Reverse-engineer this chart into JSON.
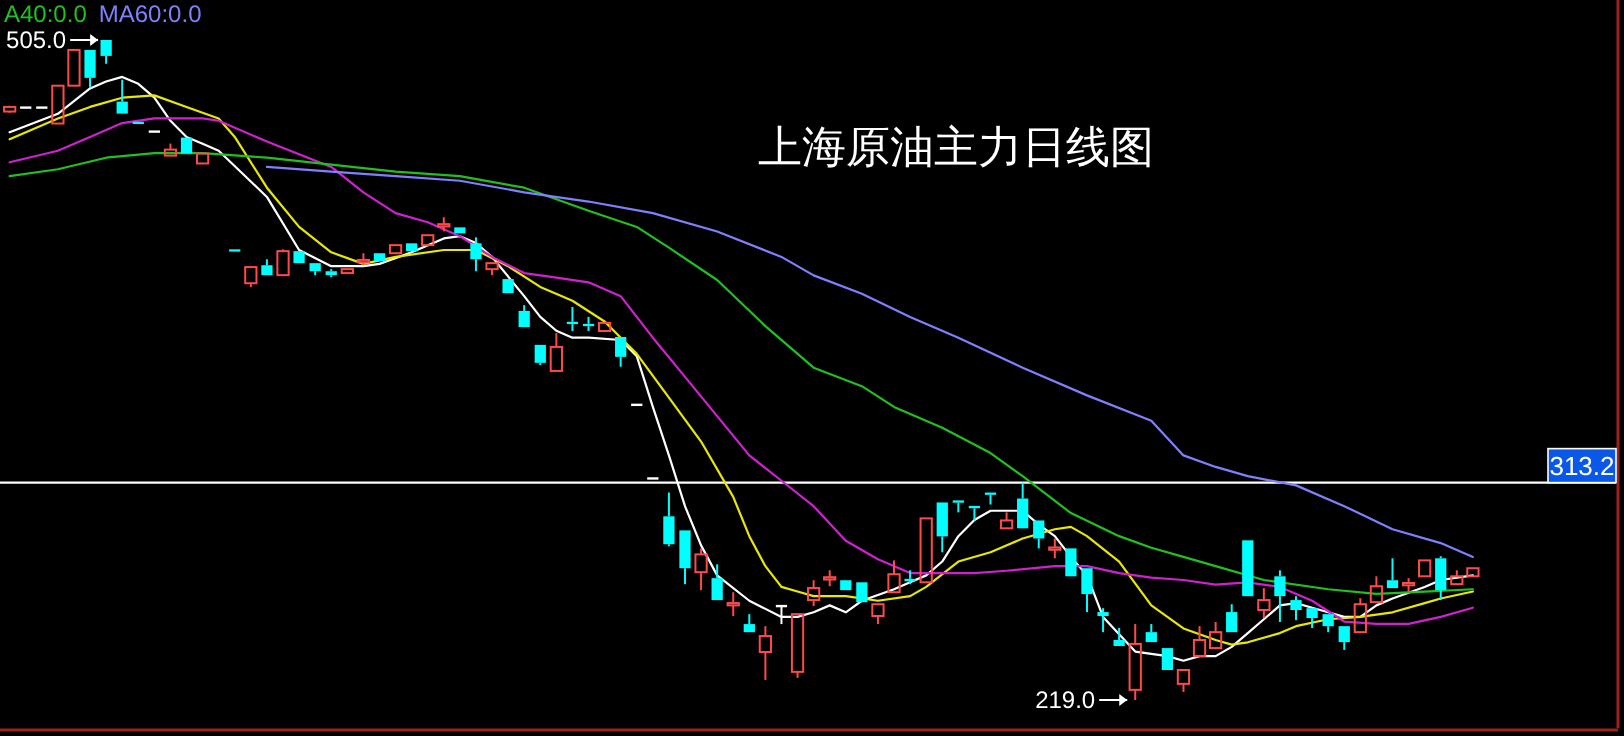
{
  "chart_data": {
    "type": "candlestick",
    "title": "上海原油主力日线图",
    "categories": [
      null,
      null,
      null,
      null,
      null,
      null,
      null,
      null,
      null,
      null,
      null,
      null,
      null,
      null,
      null,
      null,
      null,
      null,
      null,
      null,
      null,
      null,
      null,
      null,
      null,
      null,
      null,
      null,
      null,
      null,
      null,
      null,
      null,
      null,
      null,
      null,
      null,
      null,
      null,
      null,
      null,
      null,
      null,
      null,
      null,
      null,
      null,
      null,
      null,
      null,
      null,
      null,
      null,
      null,
      null,
      null,
      null,
      null,
      null,
      null,
      null,
      null,
      null,
      null,
      null,
      null,
      null,
      null,
      null,
      null,
      null,
      null,
      null,
      null,
      null,
      null,
      null,
      null,
      null,
      null,
      null,
      null,
      null,
      null,
      null,
      null,
      null,
      null,
      null,
      null,
      null,
      null
    ],
    "ohlc": [
      [
        474.0,
        476.5,
        473.5,
        476.0
      ],
      [
        475.7,
        475.7,
        475.7,
        475.7
      ],
      [
        475.7,
        475.7,
        475.7,
        475.7
      ],
      [
        468.8,
        485.2,
        468.8,
        485.2
      ],
      [
        485.2,
        500.7,
        485.2,
        500.7
      ],
      [
        500.7,
        500.7,
        484.3,
        488.6
      ],
      [
        505.0,
        505.0,
        494.7,
        498.1
      ],
      [
        478.3,
        487.8,
        473.1,
        473.1
      ],
      [
        469.6,
        469.6,
        468.6,
        468.6
      ],
      [
        465.3,
        465.3,
        465.3,
        465.3
      ],
      [
        454.9,
        460.1,
        454.9,
        457.5
      ],
      [
        462.7,
        462.7,
        455.8,
        455.8
      ],
      [
        451.5,
        455.8,
        451.5,
        455.8
      ],
      null,
      [
        414.3,
        414.3,
        413.3,
        413.3
      ],
      [
        399.6,
        406.6,
        397.9,
        406.6
      ],
      [
        407.4,
        410.0,
        403.1,
        403.1
      ],
      [
        403.1,
        414.3,
        403.1,
        413.5
      ],
      [
        413.5,
        413.5,
        408.3,
        408.3
      ],
      [
        408.3,
        408.3,
        403.1,
        404.8
      ],
      [
        404.8,
        405.7,
        402.2,
        403.1
      ],
      [
        404.0,
        405.7,
        404.0,
        405.7
      ],
      [
        408.7,
        412.6,
        407.4,
        409.7
      ],
      [
        412.6,
        412.6,
        409.2,
        409.2
      ],
      [
        412.6,
        416.1,
        412.6,
        416.1
      ],
      [
        416.9,
        416.9,
        413.5,
        413.5
      ],
      [
        416.1,
        420.4,
        416.1,
        420.4
      ],
      [
        424.2,
        428.2,
        422.1,
        425.2
      ],
      [
        423.8,
        423.8,
        421.2,
        421.2
      ],
      [
        416.9,
        419.5,
        404.8,
        410.0
      ],
      [
        405.7,
        408.3,
        403.1,
        408.3
      ],
      [
        401.4,
        401.4,
        395.3,
        395.3
      ],
      [
        387.6,
        390.1,
        380.6,
        380.6
      ],
      [
        372.9,
        372.9,
        364.2,
        365.1
      ],
      [
        361.6,
        378.0,
        361.6,
        372.0
      ],
      [
        382.9,
        389.3,
        378.9,
        381.9
      ],
      [
        382.0,
        385.0,
        378.9,
        381.0
      ],
      [
        378.9,
        382.4,
        378.9,
        382.4
      ],
      [
        376.3,
        376.3,
        363.4,
        367.7
      ],
      [
        346.9,
        346.9,
        346.9,
        346.9
      ],
      [
        315.0,
        315.0,
        315.0,
        315.0
      ],
      [
        298.6,
        308.9,
        285.6,
        286.5
      ],
      [
        292.5,
        292.5,
        269.2,
        276.1
      ],
      [
        274.4,
        284.7,
        266.6,
        282.1
      ],
      [
        271.8,
        277.8,
        262.3,
        262.3
      ],
      [
        260.0,
        265.7,
        255.4,
        261.0
      ],
      [
        251.9,
        256.2,
        248.4,
        248.4
      ],
      [
        239.8,
        251.0,
        227.7,
        246.7
      ],
      [
        259.7,
        259.7,
        251.9,
        259.7
      ],
      [
        231.2,
        256.2,
        228.6,
        256.2
      ],
      [
        262.3,
        270.9,
        259.7,
        267.5
      ],
      [
        271.2,
        275.2,
        268.3,
        272.2
      ],
      [
        270.9,
        270.9,
        266.6,
        266.6
      ],
      [
        270.0,
        270.0,
        261.4,
        261.4
      ],
      [
        255.4,
        260.5,
        251.9,
        260.5
      ],
      [
        265.7,
        279.5,
        265.7,
        273.5
      ],
      [
        271.5,
        275.2,
        269.2,
        270.5
      ],
      [
        270.0,
        297.7,
        270.0,
        297.7
      ],
      [
        304.6,
        304.6,
        283.0,
        289.9
      ],
      [
        305.5,
        305.5,
        300.3,
        304.5
      ],
      [
        303.1,
        303.1,
        296.8,
        302.1
      ],
      [
        308.9,
        308.9,
        303.7,
        307.9
      ],
      [
        293.4,
        300.3,
        293.4,
        296.8
      ],
      [
        306.3,
        313.2,
        293.4,
        293.4
      ],
      [
        296.8,
        296.8,
        284.7,
        289.0
      ],
      [
        284.1,
        289.0,
        280.4,
        285.1
      ],
      [
        284.7,
        284.7,
        272.6,
        272.6
      ],
      [
        276.1,
        276.1,
        257.1,
        264.9
      ],
      [
        257.1,
        258.8,
        248.4,
        255.4
      ],
      [
        245.0,
        250.2,
        242.4,
        242.4
      ],
      [
        223.4,
        251.9,
        219.0,
        243.3
      ],
      [
        248.4,
        251.9,
        244.1,
        244.1
      ],
      [
        241.5,
        241.5,
        232.0,
        232.0
      ],
      [
        226.0,
        232.0,
        222.5,
        232.0
      ],
      [
        238.1,
        251.0,
        238.1,
        245.0
      ],
      [
        241.5,
        252.8,
        241.5,
        248.4
      ],
      [
        257.1,
        260.5,
        248.4,
        248.4
      ],
      [
        288.2,
        288.2,
        264.0,
        264.0
      ],
      [
        258.0,
        267.5,
        254.5,
        262.3
      ],
      [
        272.6,
        275.2,
        252.8,
        264.0
      ],
      [
        262.3,
        264.0,
        253.6,
        258.0
      ],
      [
        258.8,
        258.8,
        250.2,
        254.5
      ],
      [
        256.2,
        256.2,
        248.4,
        251.0
      ],
      [
        251.0,
        251.0,
        240.7,
        244.1
      ],
      [
        248.4,
        263.1,
        248.4,
        260.5
      ],
      [
        261.4,
        272.6,
        261.4,
        268.3
      ],
      [
        270.9,
        280.4,
        267.5,
        267.5
      ],
      [
        268.7,
        271.8,
        265.7,
        269.7
      ],
      [
        272.6,
        279.5,
        272.6,
        279.5
      ],
      [
        280.4,
        281.3,
        262.3,
        266.6
      ],
      [
        269.2,
        275.2,
        269.2,
        272.6
      ],
      [
        272.6,
        276.1,
        272.6,
        276.1
      ]
    ],
    "series": [
      {
        "type": "line",
        "color": "#ffffff",
        "values": [
          465,
          null,
          null,
          473,
          null,
          484,
          487,
          489,
          486,
          480,
          470,
          463,
          460,
          457,
          null,
          null,
          437,
          null,
          414,
          null,
          407,
          null,
          407,
          408,
          null,
          413,
          null,
          419,
          420,
          417,
          411,
          null,
          394,
          385,
          379,
          376,
          376,
          null,
          375,
          368,
          346,
          325,
          303,
          286,
          273,
          null,
          262,
          null,
          255,
          255,
          257,
          260,
          257,
          262,
          null,
          267,
          270,
          273,
          279,
          290,
          297,
          301,
          null,
          301,
          295,
          290,
          281,
          273,
          255,
          null,
          240,
          null,
          238,
          236,
          238,
          238,
          242,
          248,
          254,
          260,
          261,
          259,
          257,
          255,
          255,
          260,
          263,
          null,
          268,
          271,
          null,
          273
        ]
      },
      {
        "type": "line",
        "color": "#e8e800",
        "values": [
          462,
          null,
          null,
          471,
          null,
          476,
          null,
          480,
          null,
          481,
          null,
          476,
          null,
          471,
          463,
          null,
          441,
          null,
          424,
          null,
          413,
          null,
          408,
          null,
          411,
          null,
          null,
          414,
          null,
          414,
          null,
          407,
          null,
          398,
          null,
          392,
          null,
          383,
          null,
          369,
          null,
          350,
          null,
          331,
          null,
          307,
          290,
          277,
          268,
          266,
          264,
          null,
          264,
          null,
          262,
          null,
          264,
          268,
          null,
          279,
          null,
          283,
          null,
          289,
          null,
          293,
          294,
          290,
          null,
          279,
          null,
          260,
          null,
          250,
          null,
          245,
          243,
          244,
          null,
          248,
          251,
          null,
          254,
          null,
          255,
          null,
          257,
          null,
          261,
          263,
          null,
          266
        ]
      },
      {
        "type": "line",
        "color": "#d020d0",
        "values": [
          452,
          null,
          null,
          457,
          null,
          463,
          null,
          469,
          null,
          471,
          null,
          null,
          471,
          470,
          null,
          null,
          461,
          null,
          null,
          null,
          450,
          null,
          439,
          null,
          430,
          null,
          426,
          null,
          420,
          null,
          411,
          null,
          404,
          null,
          402,
          null,
          400,
          null,
          394,
          null,
          376,
          null,
          359,
          null,
          342,
          null,
          325,
          null,
          314,
          null,
          303,
          null,
          288,
          null,
          280,
          null,
          274,
          null,
          274,
          null,
          274,
          null,
          275,
          null,
          null,
          277,
          null,
          277,
          null,
          274,
          null,
          272,
          null,
          271,
          null,
          269,
          null,
          270,
          null,
          268,
          null,
          262,
          null,
          253,
          null,
          252,
          null,
          252,
          null,
          255,
          null,
          259
        ]
      },
      {
        "type": "line",
        "name": "A40:0.0",
        "color": "#20c020",
        "values": [
          446,
          null,
          null,
          449,
          null,
          null,
          454,
          null,
          null,
          456,
          null,
          null,
          456,
          null,
          null,
          null,
          454,
          null,
          null,
          null,
          451,
          null,
          null,
          null,
          448,
          null,
          null,
          null,
          446,
          null,
          null,
          null,
          441,
          null,
          null,
          null,
          431,
          null,
          null,
          424,
          null,
          415,
          null,
          null,
          401,
          null,
          null,
          381,
          null,
          null,
          363,
          null,
          null,
          355,
          null,
          346,
          null,
          null,
          337,
          null,
          null,
          326,
          null,
          316,
          null,
          null,
          300,
          null,
          null,
          290,
          null,
          285,
          null,
          281,
          null,
          277,
          null,
          null,
          271,
          null,
          null,
          null,
          267,
          null,
          null,
          265,
          null,
          null,
          266,
          null,
          null,
          267
        ]
      },
      {
        "type": "line",
        "name": "MA60:0.0",
        "color": "#8080ff",
        "values": [
          null,
          null,
          null,
          null,
          null,
          null,
          null,
          null,
          null,
          null,
          null,
          null,
          null,
          null,
          null,
          null,
          450,
          null,
          null,
          null,
          448,
          null,
          null,
          null,
          446,
          null,
          null,
          null,
          444,
          null,
          null,
          null,
          439,
          null,
          null,
          null,
          435,
          null,
          null,
          null,
          430,
          null,
          null,
          null,
          422,
          null,
          null,
          null,
          411,
          null,
          403,
          null,
          null,
          395,
          null,
          null,
          385,
          null,
          null,
          376,
          null,
          null,
          null,
          363,
          null,
          null,
          null,
          351,
          null,
          null,
          null,
          340,
          null,
          325,
          null,
          320,
          null,
          316,
          null,
          null,
          312,
          null,
          null,
          303,
          null,
          null,
          293,
          null,
          null,
          287,
          null,
          281
        ]
      }
    ],
    "ref_lines": [
      {
        "axis": "y",
        "value": 313.2,
        "label": "313.2",
        "color": "#ffffff"
      }
    ],
    "annotations": [
      "505.0",
      "219.0"
    ],
    "legend": "top left"
  }
}
